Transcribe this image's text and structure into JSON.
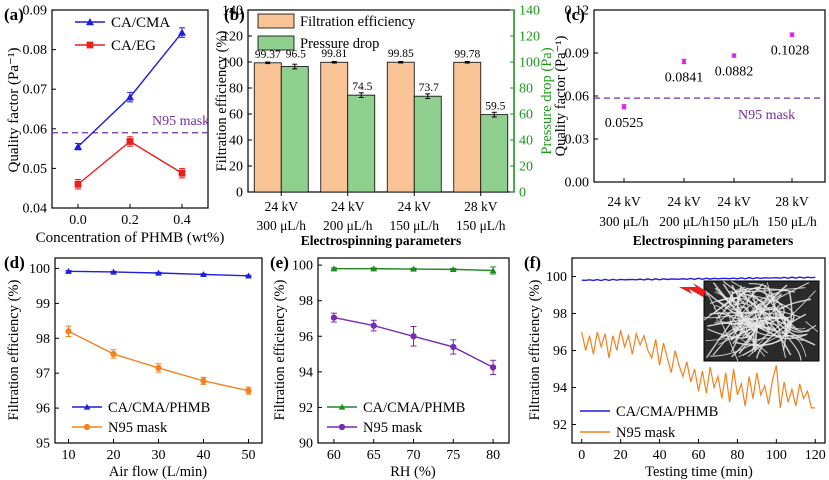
{
  "colors": {
    "blue": "#1f1fdc",
    "red": "#e8201e",
    "orange": "#f4811f",
    "orange_fill": "#f9c597",
    "green": "#1f8a1f",
    "green_fill": "#8fd08f",
    "purple": "#7a2bb5",
    "magenta": "#e21ee2",
    "dash_purple": "#7030a0",
    "green_axis": "#1a9a1a"
  },
  "chart_data": [
    {
      "id": "a",
      "panel_label": "(a)",
      "type": "line",
      "xlabel": "Concentration of PHMB (wt%)",
      "ylabel": "Quality factor (Pa⁻¹)",
      "xlim": [
        -0.1,
        0.5
      ],
      "ylim": [
        0.04,
        0.09
      ],
      "xticks": [
        0.0,
        0.2,
        0.4
      ],
      "xtick_labels": [
        "0.0",
        "0.2",
        "0.4"
      ],
      "yticks": [
        0.04,
        0.05,
        0.06,
        0.07,
        0.08,
        0.09
      ],
      "ytick_labels": [
        "0.04",
        "0.05",
        "0.06",
        "0.07",
        "0.08",
        "0.09"
      ],
      "legend_position": "top-left",
      "series": [
        {
          "name": "CA/CMA",
          "color": "#1f1fdc",
          "marker": "triangle",
          "x": [
            0.0,
            0.2,
            0.4
          ],
          "y": [
            0.0555,
            0.068,
            0.0843
          ],
          "err": [
            0.0008,
            0.0012,
            0.0012
          ]
        },
        {
          "name": "CA/EG",
          "color": "#e8201e",
          "marker": "square",
          "x": [
            0.0,
            0.2,
            0.4
          ],
          "y": [
            0.046,
            0.0568,
            0.0488
          ],
          "err": [
            0.0012,
            0.0012,
            0.0012
          ]
        }
      ],
      "reference_line": {
        "label": "N95 mask",
        "y": 0.059
      }
    },
    {
      "id": "b",
      "panel_label": "(b)",
      "type": "bar",
      "xlabel": "Electrospinning parameters",
      "ylabel": "Filtration efficiency (%)",
      "y2label": "Pressure drop (Pa)",
      "categories": [
        [
          "24 kV",
          "300 μL/h"
        ],
        [
          "24 kV",
          "200 μL/h"
        ],
        [
          "24 kV",
          "150 μL/h"
        ],
        [
          "28 kV",
          "150 μL/h"
        ]
      ],
      "ylim": [
        0,
        140
      ],
      "y2lim": [
        0,
        140
      ],
      "yticks": [
        0,
        20,
        40,
        60,
        80,
        100,
        120,
        140
      ],
      "legend_position": "top-left",
      "series": [
        {
          "name": "Filtration efficiency",
          "axis": "left",
          "values": [
            99.37,
            99.81,
            99.85,
            99.78
          ],
          "labels": [
            "99.37",
            "99.81",
            "99.85",
            "99.78"
          ]
        },
        {
          "name": "Pressure drop",
          "axis": "right",
          "values": [
            96.5,
            74.5,
            73.7,
            59.5
          ],
          "labels": [
            "96.5",
            "74.5",
            "73.7",
            "59.5"
          ]
        }
      ]
    },
    {
      "id": "c",
      "panel_label": "(c)",
      "type": "scatter",
      "xlabel": "Electrospinning parameters",
      "ylabel": "Quality factor (Pa⁻¹)",
      "categories": [
        [
          "24 kV",
          "300 μL/h"
        ],
        [
          "24 kV",
          "200 μL/h"
        ],
        [
          "24 kV",
          "150 μL/h"
        ],
        [
          "28 kV",
          "150 μL/h"
        ]
      ],
      "ylim": [
        0.0,
        0.12
      ],
      "yticks": [
        0.0,
        0.03,
        0.06,
        0.09,
        0.12
      ],
      "ytick_labels": [
        "0.00",
        "0.03",
        "0.06",
        "0.09",
        "0.12"
      ],
      "values": [
        0.0525,
        0.0841,
        0.0882,
        0.1028
      ],
      "labels": [
        "0.0525",
        "0.0841",
        "0.0882",
        "0.1028"
      ],
      "err": [
        0.0015,
        0.0015,
        0.0012,
        0.0012
      ],
      "reference_line": {
        "label": "N95 mask",
        "y": 0.0585
      }
    },
    {
      "id": "d",
      "panel_label": "(d)",
      "type": "line",
      "xlabel": "Air flow (L/min)",
      "ylabel": "Filtration efficiency (%)",
      "xlim": [
        7,
        53
      ],
      "ylim": [
        95,
        100.3
      ],
      "xticks": [
        10,
        20,
        30,
        40,
        50
      ],
      "yticks": [
        95,
        96,
        97,
        98,
        99,
        100
      ],
      "legend_position": "bottom-left",
      "series": [
        {
          "name": "CA/CMA/PHMB",
          "color": "#1f1fdc",
          "marker": "triangle",
          "x": [
            10,
            20,
            30,
            40,
            50
          ],
          "y": [
            99.92,
            99.9,
            99.87,
            99.83,
            99.79
          ],
          "err": [
            0.02,
            0.02,
            0.02,
            0.02,
            0.02
          ]
        },
        {
          "name": "N95 mask",
          "color": "#f4811f",
          "marker": "circle",
          "x": [
            10,
            20,
            30,
            40,
            50
          ],
          "y": [
            98.2,
            97.55,
            97.15,
            96.78,
            96.5
          ],
          "err": [
            0.15,
            0.12,
            0.12,
            0.1,
            0.1
          ]
        }
      ]
    },
    {
      "id": "e",
      "panel_label": "(e)",
      "type": "line",
      "xlabel": "RH (%)",
      "ylabel": "Filtration efficiency (%)",
      "xlim": [
        58,
        82
      ],
      "ylim": [
        90,
        100.4
      ],
      "xticks": [
        60,
        65,
        70,
        75,
        80
      ],
      "yticks": [
        90,
        92,
        94,
        96,
        98,
        100
      ],
      "legend_position": "bottom-left",
      "series": [
        {
          "name": "CA/CMA/PHMB",
          "color": "#1f8a1f",
          "marker": "triangle",
          "x": [
            60,
            65,
            70,
            75,
            80
          ],
          "y": [
            99.8,
            99.8,
            99.78,
            99.76,
            99.7
          ],
          "err": [
            0.05,
            0.05,
            0.05,
            0.05,
            0.2
          ]
        },
        {
          "name": "N95 mask",
          "color": "#7a2bb5",
          "marker": "circle",
          "x": [
            60,
            65,
            70,
            75,
            80
          ],
          "y": [
            97.05,
            96.6,
            96.0,
            95.4,
            94.25
          ],
          "err": [
            0.25,
            0.3,
            0.55,
            0.4,
            0.4
          ]
        }
      ]
    },
    {
      "id": "f",
      "panel_label": "(f)",
      "type": "line",
      "xlabel": "Testing time (min)",
      "ylabel": "Filtration efficiency (%)",
      "xlim": [
        -5,
        125
      ],
      "ylim": [
        91,
        101
      ],
      "xticks": [
        0,
        20,
        40,
        60,
        80,
        100,
        120
      ],
      "yticks": [
        92,
        94,
        96,
        98,
        100
      ],
      "legend_position": "bottom-left",
      "inset": "fiber micrograph",
      "series": [
        {
          "name": "CA/CMA/PHMB",
          "color": "#1f1fdc",
          "x": [
            0,
            120
          ],
          "y": [
            99.8,
            99.95
          ]
        },
        {
          "name": "N95 mask",
          "color": "#f4811f",
          "x": [
            0,
            2,
            4,
            6,
            8,
            10,
            12,
            14,
            16,
            18,
            20,
            22,
            24,
            26,
            28,
            30,
            32,
            34,
            36,
            38,
            40,
            42,
            44,
            46,
            48,
            50,
            52,
            54,
            56,
            58,
            60,
            62,
            64,
            66,
            68,
            70,
            72,
            74,
            76,
            78,
            80,
            82,
            84,
            86,
            88,
            90,
            92,
            94,
            96,
            98,
            100,
            102,
            104,
            106,
            108,
            110,
            112,
            114,
            116,
            118,
            120
          ],
          "y": [
            97.0,
            96.0,
            96.8,
            95.8,
            97.0,
            96.2,
            96.9,
            95.6,
            96.8,
            96.0,
            97.1,
            96.2,
            96.8,
            95.8,
            96.9,
            96.3,
            96.8,
            96.0,
            95.6,
            96.6,
            95.2,
            96.4,
            95.6,
            94.8,
            96.0,
            95.2,
            94.6,
            95.4,
            94.3,
            95.0,
            93.8,
            94.9,
            93.7,
            95.1,
            94.0,
            94.6,
            93.4,
            94.8,
            93.2,
            95.0,
            93.6,
            94.2,
            93.0,
            94.6,
            93.4,
            94.8,
            93.6,
            94.1,
            93.1,
            94.4,
            95.2,
            92.9,
            94.3,
            93.2,
            93.9,
            93.0,
            94.2,
            93.4,
            93.8,
            92.9,
            92.9
          ]
        }
      ]
    }
  ]
}
